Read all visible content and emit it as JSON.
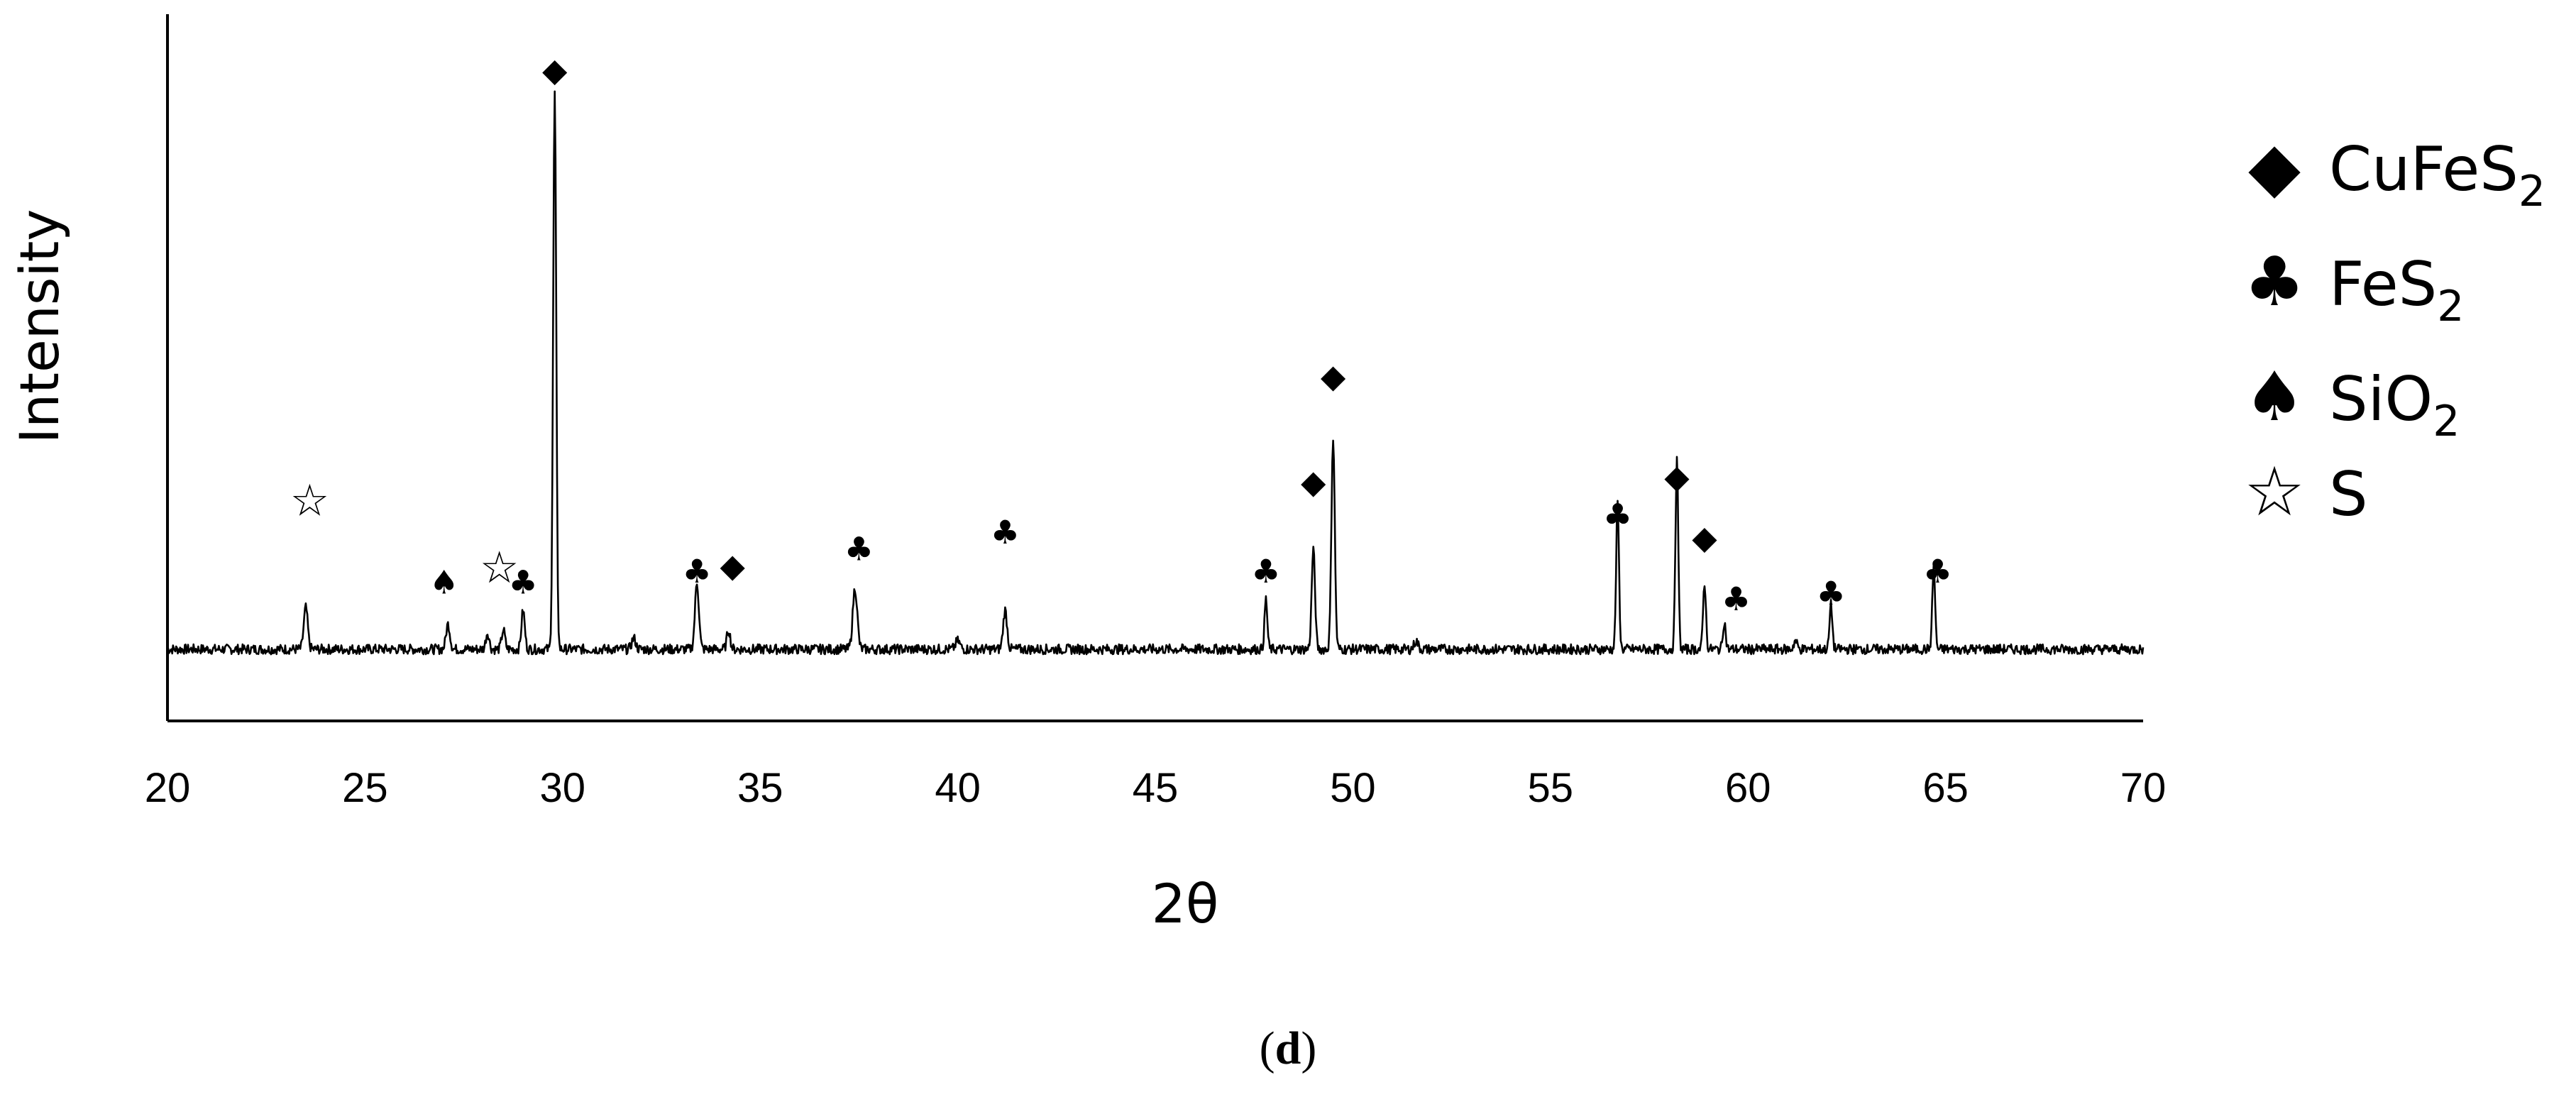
{
  "chart_data": {
    "type": "line",
    "title": "",
    "xlabel": "2θ",
    "ylabel": "Intensity",
    "xlim": [
      20,
      70
    ],
    "xticks": [
      20,
      25,
      30,
      35,
      40,
      45,
      50,
      55,
      60,
      65,
      70
    ],
    "grid": false,
    "y_tick_labels_shown": false,
    "legend_position": "right",
    "legend": [
      {
        "symbol_name": "diamond",
        "symbol": "◆",
        "label": "CuFeS",
        "subscript": "2"
      },
      {
        "symbol_name": "club",
        "symbol": "♣",
        "label": "FeS",
        "subscript": "2"
      },
      {
        "symbol_name": "spade",
        "symbol": "♠",
        "label": "SiO",
        "subscript": "2"
      },
      {
        "symbol_name": "star",
        "symbol": "☆",
        "label": "S",
        "subscript": ""
      }
    ],
    "baseline": 0.06,
    "peaks": [
      {
        "x": 23.5,
        "height": 0.075,
        "width": 0.07
      },
      {
        "x": 27.1,
        "height": 0.045,
        "width": 0.07
      },
      {
        "x": 28.1,
        "height": 0.03,
        "width": 0.06
      },
      {
        "x": 28.5,
        "height": 0.035,
        "width": 0.06
      },
      {
        "x": 29.0,
        "height": 0.07,
        "width": 0.06
      },
      {
        "x": 29.8,
        "height": 1.0,
        "width": 0.055
      },
      {
        "x": 31.8,
        "height": 0.02,
        "width": 0.07
      },
      {
        "x": 33.4,
        "height": 0.12,
        "width": 0.07
      },
      {
        "x": 34.2,
        "height": 0.035,
        "width": 0.06
      },
      {
        "x": 37.4,
        "height": 0.11,
        "width": 0.08
      },
      {
        "x": 40.0,
        "height": 0.015,
        "width": 0.08
      },
      {
        "x": 41.2,
        "height": 0.07,
        "width": 0.07
      },
      {
        "x": 47.8,
        "height": 0.09,
        "width": 0.05
      },
      {
        "x": 49.0,
        "height": 0.18,
        "width": 0.06
      },
      {
        "x": 49.5,
        "height": 0.38,
        "width": 0.06
      },
      {
        "x": 51.6,
        "height": 0.015,
        "width": 0.07
      },
      {
        "x": 56.7,
        "height": 0.26,
        "width": 0.05
      },
      {
        "x": 58.2,
        "height": 0.34,
        "width": 0.05
      },
      {
        "x": 58.9,
        "height": 0.12,
        "width": 0.05
      },
      {
        "x": 59.4,
        "height": 0.05,
        "width": 0.05
      },
      {
        "x": 61.2,
        "height": 0.015,
        "width": 0.06
      },
      {
        "x": 62.1,
        "height": 0.08,
        "width": 0.05
      },
      {
        "x": 64.7,
        "height": 0.15,
        "width": 0.05
      }
    ],
    "phase_markers": [
      {
        "x": 23.6,
        "y": 0.3,
        "phase": "S"
      },
      {
        "x": 27.0,
        "y": 0.16,
        "phase": "SiO2"
      },
      {
        "x": 28.4,
        "y": 0.18,
        "phase": "S"
      },
      {
        "x": 29.0,
        "y": 0.16,
        "phase": "FeS2"
      },
      {
        "x": 29.8,
        "y": 1.08,
        "phase": "CuFeS2"
      },
      {
        "x": 33.4,
        "y": 0.18,
        "phase": "FeS2"
      },
      {
        "x": 34.3,
        "y": 0.19,
        "phase": "CuFeS2"
      },
      {
        "x": 37.5,
        "y": 0.22,
        "phase": "FeS2"
      },
      {
        "x": 41.2,
        "y": 0.25,
        "phase": "FeS2"
      },
      {
        "x": 47.8,
        "y": 0.18,
        "phase": "FeS2"
      },
      {
        "x": 49.0,
        "y": 0.34,
        "phase": "CuFeS2"
      },
      {
        "x": 49.5,
        "y": 0.53,
        "phase": "CuFeS2"
      },
      {
        "x": 56.7,
        "y": 0.28,
        "phase": "FeS2"
      },
      {
        "x": 58.2,
        "y": 0.35,
        "phase": "CuFeS2"
      },
      {
        "x": 58.9,
        "y": 0.24,
        "phase": "CuFeS2"
      },
      {
        "x": 59.7,
        "y": 0.13,
        "phase": "FeS2"
      },
      {
        "x": 62.1,
        "y": 0.14,
        "phase": "FeS2"
      },
      {
        "x": 64.8,
        "y": 0.18,
        "phase": "FeS2"
      }
    ],
    "phase_symbols": {
      "CuFeS2": "◆",
      "FeS2": "♣",
      "SiO2": "♠",
      "S": "☆"
    }
  },
  "caption": {
    "open": "(",
    "letter": "d",
    "close": ")"
  }
}
